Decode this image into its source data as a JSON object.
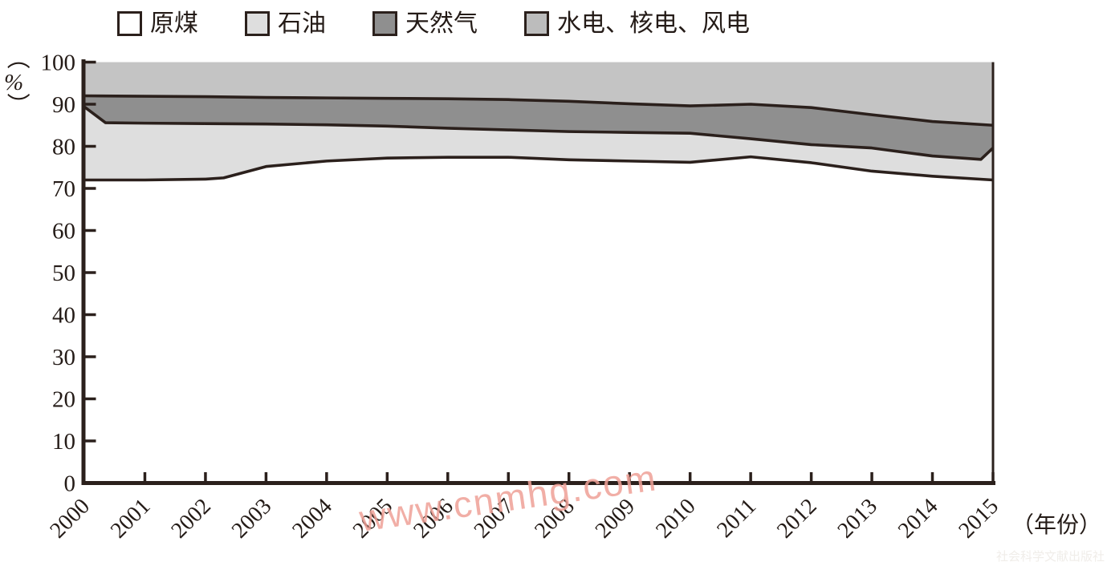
{
  "legend": {
    "items": [
      {
        "id": "raw-coal",
        "label": "原煤",
        "color": "#ffffff"
      },
      {
        "id": "petroleum",
        "label": "石油",
        "color": "#dedede"
      },
      {
        "id": "natural-gas",
        "label": "天然气",
        "color": "#8f8f8f"
      },
      {
        "id": "hydro-nuclear-wind",
        "label": "水电、核电、风电",
        "color": "#bcbcbc"
      }
    ]
  },
  "watermarks": {
    "center": {
      "text": "www.cnmhg.com",
      "color": "#efa197"
    },
    "corner": {
      "text": "社会科学文献出版社",
      "color": "#f0ede9"
    }
  },
  "axes": {
    "y_unit": "（%）",
    "x_unit": "（年份）"
  },
  "chart_data": {
    "type": "area",
    "subtype": "stacked-percent",
    "title": "",
    "xlabel": "（年份）",
    "ylabel": "（%）",
    "xlim": [
      2000,
      2015
    ],
    "ylim": [
      0,
      100
    ],
    "x_ticks": [
      2000,
      2001,
      2002,
      2003,
      2004,
      2005,
      2006,
      2007,
      2008,
      2009,
      2010,
      2011,
      2012,
      2013,
      2014,
      2015
    ],
    "y_ticks": [
      0,
      10,
      20,
      30,
      40,
      50,
      60,
      70,
      80,
      90,
      100
    ],
    "grid": false,
    "legend_position": "top",
    "line_color": "#2b201c",
    "series": [
      {
        "id": "raw-coal",
        "name": "原煤",
        "fill": "#ffffff",
        "top_boundary": {
          "x": [
            2000,
            2001,
            2002,
            2002.3,
            2003,
            2004,
            2005,
            2006,
            2007,
            2008,
            2009,
            2010,
            2011,
            2012,
            2013,
            2014,
            2015
          ],
          "y": [
            72.0,
            72.0,
            72.2,
            72.5,
            75.2,
            76.5,
            77.2,
            77.4,
            77.4,
            76.8,
            76.5,
            76.2,
            77.5,
            76.1,
            74.1,
            72.9,
            72.0
          ]
        }
      },
      {
        "id": "petroleum",
        "name": "石油",
        "fill": "#dedede",
        "top_boundary": {
          "x": [
            2000,
            2000.35,
            2001,
            2002,
            2003,
            2004,
            2005,
            2006,
            2007,
            2008,
            2009,
            2010,
            2011,
            2012,
            2013,
            2014,
            2014.8,
            2015
          ],
          "y": [
            89.4,
            85.6,
            85.5,
            85.4,
            85.3,
            85.1,
            84.8,
            84.3,
            83.9,
            83.5,
            83.3,
            83.1,
            81.8,
            80.4,
            79.6,
            77.7,
            76.9,
            79.6
          ]
        }
      },
      {
        "id": "natural-gas",
        "name": "天然气",
        "fill": "#8f8f8f",
        "top_boundary": {
          "x": [
            2000,
            2001,
            2002,
            2003,
            2004,
            2005,
            2006,
            2007,
            2008,
            2009,
            2010,
            2011,
            2012,
            2013,
            2014,
            2015
          ],
          "y": [
            92.0,
            91.9,
            91.8,
            91.6,
            91.5,
            91.4,
            91.3,
            91.1,
            90.7,
            90.1,
            89.6,
            90.0,
            89.2,
            87.5,
            85.9,
            85.0
          ]
        }
      },
      {
        "id": "hydro-nuclear-wind",
        "name": "水电、核电、风电",
        "fill": "#c4c4c4",
        "top_boundary": {
          "x": [
            2000,
            2015
          ],
          "y": [
            100,
            100
          ]
        }
      }
    ]
  }
}
